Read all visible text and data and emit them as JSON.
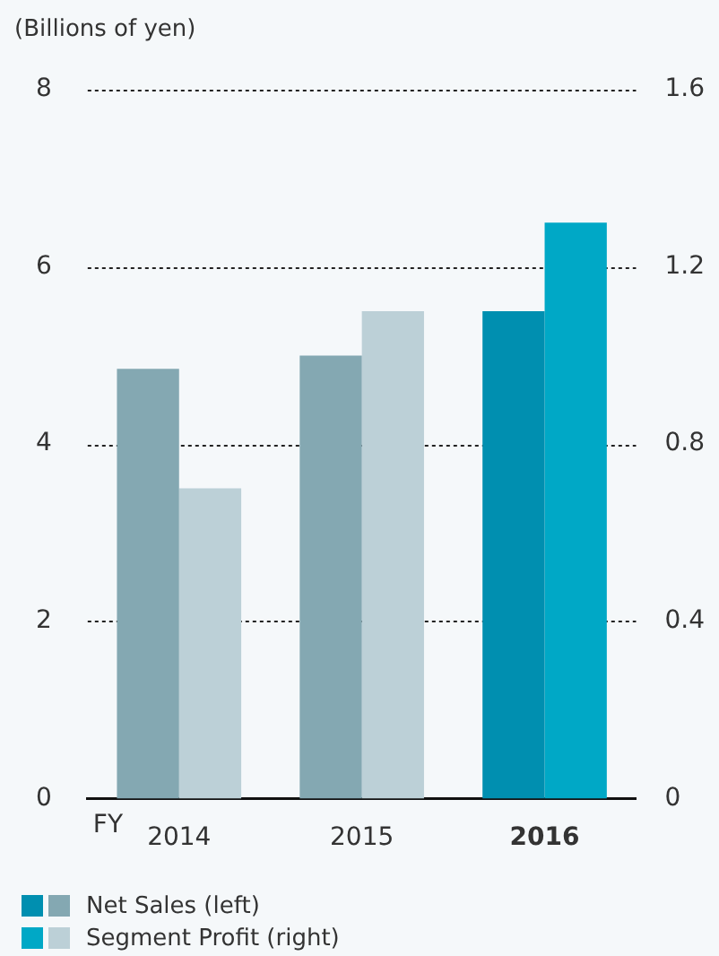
{
  "chart_data": {
    "type": "bar",
    "ylabel": "(Billions of yen)",
    "xlabel": "FY",
    "categories": [
      "2014",
      "2015",
      "2016"
    ],
    "series": [
      {
        "name": "Net Sales (left)",
        "colors": [
          "#84a8b2",
          "#84a8b2",
          "#008fb0"
        ],
        "values": [
          4.85,
          5.0,
          5.5
        ]
      },
      {
        "name": "Segment Profit (right)",
        "axis": "y2",
        "colors": [
          "#bcd0d7",
          "#bcd0d7",
          "#00a8c6"
        ],
        "values": [
          0.7,
          1.1,
          1.3
        ]
      }
    ],
    "ylim": [
      0,
      8
    ],
    "yticks": [
      0,
      2,
      4,
      6,
      8
    ],
    "y2lim": [
      0,
      1.6
    ],
    "y2ticks": [
      0,
      0.4,
      0.8,
      1.2,
      1.6
    ],
    "grid": "y",
    "legend": "bottom"
  }
}
